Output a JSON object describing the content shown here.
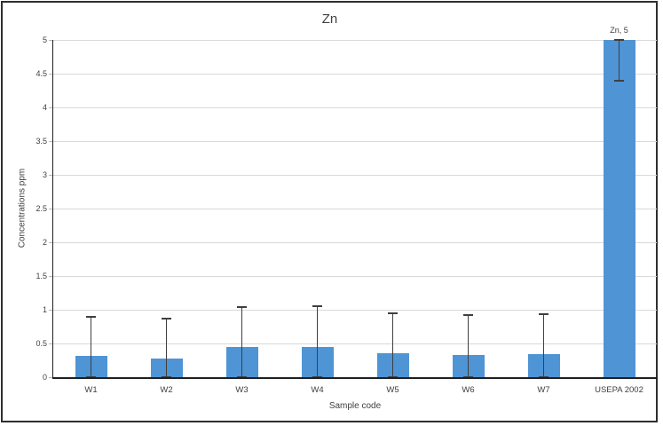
{
  "chart_data": {
    "type": "bar",
    "title": "Zn",
    "xlabel": "Sample code",
    "ylabel": "Concentrations ppm",
    "ylim": [
      0,
      5
    ],
    "ytick_step": 0.5,
    "ytick_labels": [
      "0",
      "0.5",
      "1",
      "1.5",
      "2",
      "2.5",
      "3",
      "3.5",
      "4",
      "4.5",
      "5"
    ],
    "categories": [
      "W1",
      "W2",
      "W3",
      "W4",
      "W5",
      "W6",
      "W7",
      "USEPA 2002"
    ],
    "values": [
      0.31,
      0.28,
      0.45,
      0.45,
      0.36,
      0.33,
      0.34,
      5
    ],
    "error_top": [
      0.9,
      0.87,
      1.04,
      1.05,
      0.95,
      0.92,
      0.93,
      5
    ],
    "error_bottom": [
      0,
      0,
      0,
      0,
      0,
      0,
      0,
      4.4
    ],
    "data_labels": [
      null,
      null,
      null,
      null,
      null,
      null,
      null,
      "Zn, 5"
    ],
    "grid": true,
    "legend": false,
    "colors": {
      "bar": "#4F94D4",
      "error": "#3f3f3f",
      "gridline": "#d9d9d9",
      "axis": "#1f1f1f",
      "text": "#404040",
      "frame_border": "#2e2e2e"
    }
  }
}
